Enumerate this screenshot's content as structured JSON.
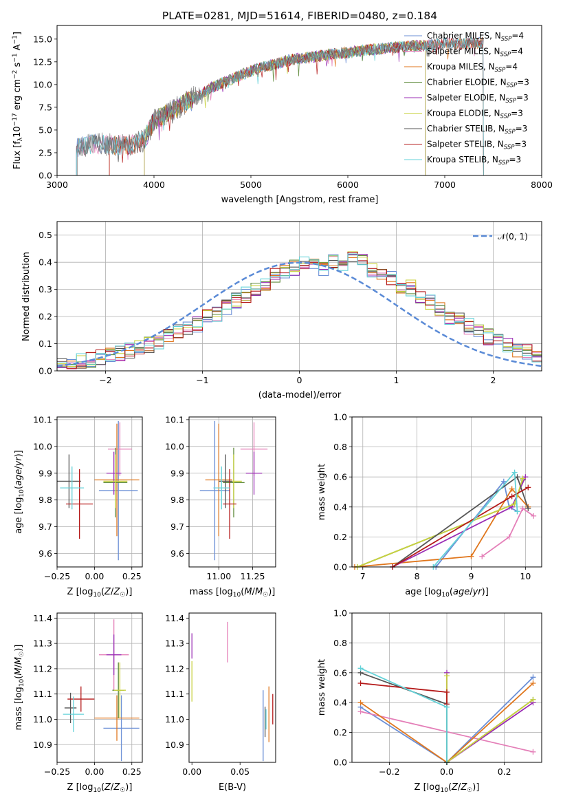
{
  "colors": {
    "Chabrier MILES": "#6b8fd6",
    "Salpeter MILES": "#e47fb8",
    "Kroupa MILES": "#e0761c",
    "Chabrier ELODIE": "#5e8a3a",
    "Salpeter ELODIE": "#9b2fb5",
    "Kroupa ELODIE": "#c8d23e",
    "Chabrier STELIB": "#555555",
    "Salpeter STELIB": "#b51a1a",
    "Kroupa STELIB": "#63d2d8",
    "normal": "#5a8ad6",
    "grid": "#b0b0b0"
  },
  "chart_data": [
    {
      "id": "spectrum",
      "type": "line",
      "title": "PLATE=0281, MJD=51614, FIBERID=0480, z=0.184",
      "xlabel": "wavelength [Angstrom, rest frame]",
      "ylabel": "Flux [f_λ 10^-17 erg cm^-2 s^-1 A^-1]",
      "xlim": [
        3000,
        8000
      ],
      "ylim": [
        0,
        16.5
      ],
      "xticks": [
        "3000",
        "4000",
        "5000",
        "6000",
        "7000",
        "8000"
      ],
      "yticks": [
        "0.0",
        "2.5",
        "5.0",
        "7.5",
        "10.0",
        "12.5",
        "15.0"
      ],
      "grid": false,
      "legend_position": "top-right",
      "legend": [
        {
          "label": "Chabrier MILES, N",
          "sub": "SSP",
          "suffix": "=4",
          "color": "#6b8fd6"
        },
        {
          "label": "Salpeter MILES, N",
          "sub": "SSP",
          "suffix": "=4",
          "color": "#e47fb8"
        },
        {
          "label": "Kroupa MILES, N",
          "sub": "SSP",
          "suffix": "=4",
          "color": "#e0761c"
        },
        {
          "label": "Chabrier ELODIE, N",
          "sub": "SSP",
          "suffix": "=3",
          "color": "#5e8a3a"
        },
        {
          "label": "Salpeter ELODIE, N",
          "sub": "SSP",
          "suffix": "=3",
          "color": "#9b2fb5"
        },
        {
          "label": "Kroupa ELODIE, N",
          "sub": "SSP",
          "suffix": "=3",
          "color": "#c8d23e"
        },
        {
          "label": "Chabrier STELIB, N",
          "sub": "SSP",
          "suffix": "=3",
          "color": "#555555"
        },
        {
          "label": "Salpeter STELIB, N",
          "sub": "SSP",
          "suffix": "=3",
          "color": "#b51a1a"
        },
        {
          "label": "Kroupa STELIB, N",
          "sub": "SSP",
          "suffix": "=3",
          "color": "#63d2d8"
        }
      ],
      "continuum": [
        [
          3200,
          3.1
        ],
        [
          3400,
          3.5
        ],
        [
          3600,
          3.3
        ],
        [
          3800,
          3.4
        ],
        [
          3900,
          3.9
        ],
        [
          4000,
          6.0
        ],
        [
          4200,
          7.2
        ],
        [
          4400,
          8.5
        ],
        [
          4600,
          9.7
        ],
        [
          4800,
          10.6
        ],
        [
          5000,
          11.5
        ],
        [
          5200,
          12.1
        ],
        [
          5400,
          12.7
        ],
        [
          5600,
          13.0
        ],
        [
          5800,
          13.3
        ],
        [
          6000,
          13.5
        ],
        [
          6200,
          13.8
        ],
        [
          6400,
          14.0
        ],
        [
          6600,
          14.2
        ],
        [
          6800,
          14.3
        ],
        [
          7000,
          14.5
        ],
        [
          7200,
          14.5
        ],
        [
          7400,
          14.6
        ]
      ],
      "model_ranges": [
        {
          "color": "#6b8fd6",
          "x": [
            3200,
            7400
          ]
        },
        {
          "color": "#e47fb8",
          "x": [
            3200,
            7400
          ]
        },
        {
          "color": "#e0761c",
          "x": [
            3540,
            7400
          ]
        },
        {
          "color": "#5e8a3a",
          "x": [
            3900,
            6800
          ]
        },
        {
          "color": "#9b2fb5",
          "x": [
            3900,
            6800
          ]
        },
        {
          "color": "#c8d23e",
          "x": [
            3900,
            6800
          ]
        },
        {
          "color": "#555555",
          "x": [
            3200,
            7400
          ]
        },
        {
          "color": "#b51a1a",
          "x": [
            3540,
            7400
          ]
        },
        {
          "color": "#63d2d8",
          "x": [
            3200,
            7400
          ]
        }
      ]
    },
    {
      "id": "residuals",
      "type": "line",
      "xlabel": "(data-model)/error",
      "ylabel": "Normed distribution",
      "xlim": [
        -2.5,
        2.5
      ],
      "ylim": [
        0,
        0.55
      ],
      "xticks": [
        "−2",
        "−1",
        "0",
        "1",
        "2"
      ],
      "yticks": [
        "0.0",
        "0.1",
        "0.2",
        "0.3",
        "0.4",
        "0.5"
      ],
      "grid": true,
      "legend_position": "top-right",
      "legend": [
        {
          "label": "𝒩(0, 1)",
          "color": "#5a8ad6"
        }
      ],
      "bin_width": 0.1,
      "bin_start": -2.5,
      "base_histogram": [
        0.04,
        0.03,
        0.035,
        0.04,
        0.05,
        0.055,
        0.065,
        0.075,
        0.09,
        0.095,
        0.11,
        0.125,
        0.14,
        0.16,
        0.17,
        0.2,
        0.21,
        0.235,
        0.26,
        0.28,
        0.3,
        0.32,
        0.35,
        0.37,
        0.38,
        0.4,
        0.4,
        0.38,
        0.4,
        0.38,
        0.41,
        0.4,
        0.375,
        0.355,
        0.345,
        0.315,
        0.305,
        0.275,
        0.255,
        0.23,
        0.2,
        0.185,
        0.165,
        0.15,
        0.125,
        0.11,
        0.095,
        0.08,
        0.07,
        0.06
      ]
    },
    {
      "id": "age-vs-Z",
      "type": "scatter",
      "xlabel": "Z [log10(Z/Z☉)]",
      "ylabel": "age  [log10(age/yr)]",
      "xlim": [
        -0.25,
        0.32
      ],
      "ylim": [
        9.55,
        10.11
      ],
      "xticks": [
        "−0.25",
        "0.00",
        "0.25"
      ],
      "yticks": [
        "9.6",
        "9.7",
        "9.8",
        "9.9",
        "10.0",
        "10.1"
      ],
      "grid": true,
      "points": [
        {
          "color": "#6b8fd6",
          "x": 0.16,
          "xerr": 0.13,
          "y": 9.835,
          "yerr": 0.26
        },
        {
          "color": "#e47fb8",
          "x": 0.17,
          "xerr": 0.08,
          "y": 9.99,
          "yerr": 0.1
        },
        {
          "color": "#e0761c",
          "x": 0.15,
          "xerr": 0.15,
          "y": 9.875,
          "yerr": 0.21
        },
        {
          "color": "#5e8a3a",
          "x": 0.14,
          "xerr": 0.08,
          "y": 9.865,
          "yerr": 0.13
        },
        {
          "color": "#9b2fb5",
          "x": 0.13,
          "xerr": 0.05,
          "y": 9.9,
          "yerr": 0.08
        },
        {
          "color": "#c8d23e",
          "x": 0.14,
          "xerr": 0.08,
          "y": 9.87,
          "yerr": 0.1
        },
        {
          "color": "#555555",
          "x": -0.17,
          "xerr": 0.08,
          "y": 9.87,
          "yerr": 0.1
        },
        {
          "color": "#b51a1a",
          "x": -0.1,
          "xerr": 0.09,
          "y": 9.785,
          "yerr": 0.13
        },
        {
          "color": "#63d2d8",
          "x": -0.15,
          "xerr": 0.08,
          "y": 9.845,
          "yerr": 0.08
        }
      ]
    },
    {
      "id": "age-vs-mass",
      "type": "scatter",
      "xlabel": "mass [log10(M/M☉)]",
      "ylabel": "",
      "xlim": [
        10.78,
        11.42
      ],
      "ylim": [
        9.55,
        10.11
      ],
      "xticks": [
        "11.00",
        "11.25"
      ],
      "yticks": [
        "9.6",
        "9.7",
        "9.8",
        "9.9",
        "10.0",
        "10.1"
      ],
      "grid": true,
      "points": [
        {
          "color": "#6b8fd6",
          "x": 10.97,
          "xerr": 0.11,
          "y": 9.835,
          "yerr": 0.26
        },
        {
          "color": "#e47fb8",
          "x": 11.26,
          "xerr": 0.1,
          "y": 9.99,
          "yerr": 0.1
        },
        {
          "color": "#e0761c",
          "x": 11.0,
          "xerr": 0.1,
          "y": 9.875,
          "yerr": 0.21
        },
        {
          "color": "#5e8a3a",
          "x": 11.11,
          "xerr": 0.08,
          "y": 9.865,
          "yerr": 0.13
        },
        {
          "color": "#9b2fb5",
          "x": 11.26,
          "xerr": 0.06,
          "y": 9.9,
          "yerr": 0.08
        },
        {
          "color": "#c8d23e",
          "x": 11.11,
          "xerr": 0.06,
          "y": 9.87,
          "yerr": 0.1
        },
        {
          "color": "#555555",
          "x": 11.05,
          "xerr": 0.05,
          "y": 9.87,
          "yerr": 0.1
        },
        {
          "color": "#b51a1a",
          "x": 11.08,
          "xerr": 0.05,
          "y": 9.785,
          "yerr": 0.13
        },
        {
          "color": "#63d2d8",
          "x": 11.02,
          "xerr": 0.06,
          "y": 9.845,
          "yerr": 0.08
        }
      ]
    },
    {
      "id": "mass-weight-vs-age",
      "type": "line",
      "xlabel": "age  [log10(age/yr)]",
      "ylabel": "mass weight",
      "xlim": [
        6.8,
        10.3
      ],
      "ylim": [
        0,
        1.0
      ],
      "xticks": [
        "7",
        "8",
        "9",
        "10"
      ],
      "yticks": [
        "0.0",
        "0.2",
        "0.4",
        "0.6",
        "0.8",
        "1.0"
      ],
      "grid": true,
      "series": [
        {
          "color": "#6b8fd6",
          "x": [
            8.35,
            9.6,
            9.7,
            9.85
          ],
          "y": [
            0.0,
            0.57,
            0.4,
            0.37
          ]
        },
        {
          "color": "#e47fb8",
          "x": [
            9.2,
            9.7,
            9.95,
            10.15
          ],
          "y": [
            0.07,
            0.2,
            0.39,
            0.34
          ]
        },
        {
          "color": "#e0761c",
          "x": [
            6.85,
            9.0,
            9.75,
            10.05
          ],
          "y": [
            0.0,
            0.07,
            0.52,
            0.4
          ]
        },
        {
          "color": "#5e8a3a",
          "x": [
            6.9,
            9.8,
            9.95
          ],
          "y": [
            0.0,
            0.42,
            0.58
          ]
        },
        {
          "color": "#9b2fb5",
          "x": [
            7.55,
            9.75,
            10.0
          ],
          "y": [
            0.0,
            0.4,
            0.6
          ]
        },
        {
          "color": "#c8d23e",
          "x": [
            6.9,
            9.8,
            9.95
          ],
          "y": [
            0.0,
            0.42,
            0.59
          ]
        },
        {
          "color": "#555555",
          "x": [
            7.55,
            9.85,
            10.05
          ],
          "y": [
            0.0,
            0.6,
            0.39
          ]
        },
        {
          "color": "#b51a1a",
          "x": [
            7.55,
            9.75,
            10.05
          ],
          "y": [
            0.0,
            0.47,
            0.53
          ]
        },
        {
          "color": "#63d2d8",
          "x": [
            8.3,
            9.8,
            9.85
          ],
          "y": [
            0.0,
            0.63,
            0.37
          ]
        }
      ]
    },
    {
      "id": "mass-vs-Z",
      "type": "scatter",
      "xlabel": "Z [log10(Z/Z☉)]",
      "ylabel": "mass [log10(M/M☉)]",
      "xlim": [
        -0.25,
        0.32
      ],
      "ylim": [
        10.83,
        11.42
      ],
      "xticks": [
        "−0.25",
        "0.00",
        "0.25"
      ],
      "yticks": [
        "10.9",
        "11.0",
        "11.1",
        "11.2",
        "11.3",
        "11.4"
      ],
      "grid": true,
      "points": [
        {
          "color": "#6b8fd6",
          "x": 0.18,
          "xerr": 0.12,
          "y": 10.965,
          "yerr": 0.13
        },
        {
          "color": "#e47fb8",
          "x": 0.13,
          "xerr": 0.1,
          "y": 11.255,
          "yerr": 0.14
        },
        {
          "color": "#e0761c",
          "x": 0.15,
          "xerr": 0.15,
          "y": 11.005,
          "yerr": 0.09
        },
        {
          "color": "#5e8a3a",
          "x": 0.16,
          "xerr": 0.04,
          "y": 11.115,
          "yerr": 0.11
        },
        {
          "color": "#9b2fb5",
          "x": 0.13,
          "xerr": 0.05,
          "y": 11.255,
          "yerr": 0.08
        },
        {
          "color": "#c8d23e",
          "x": 0.17,
          "xerr": 0.04,
          "y": 11.115,
          "yerr": 0.11
        },
        {
          "color": "#555555",
          "x": -0.16,
          "xerr": 0.04,
          "y": 11.045,
          "yerr": 0.06
        },
        {
          "color": "#b51a1a",
          "x": -0.09,
          "xerr": 0.09,
          "y": 11.08,
          "yerr": 0.05
        },
        {
          "color": "#63d2d8",
          "x": -0.14,
          "xerr": 0.07,
          "y": 11.02,
          "yerr": 0.07
        }
      ]
    },
    {
      "id": "mass-vs-ebv",
      "type": "scatter",
      "xlabel": "E(B-V)",
      "ylabel": "",
      "xlim": [
        -0.003,
        0.087
      ],
      "ylim": [
        10.83,
        11.42
      ],
      "xticks": [
        "0.00",
        "0.05"
      ],
      "yticks": [
        "10.9",
        "11.0",
        "11.1",
        "11.2",
        "11.3",
        "11.4"
      ],
      "grid": false,
      "points": [
        {
          "color": "#6b8fd6",
          "x": 0.074,
          "y": 10.975,
          "yerr": 0.14
        },
        {
          "color": "#e47fb8",
          "x": 0.037,
          "y": 11.305,
          "yerr": 0.08
        },
        {
          "color": "#e0761c",
          "x": 0.08,
          "y": 11.02,
          "yerr": 0.11
        },
        {
          "color": "#9b2fb5",
          "x": 0.0,
          "y": 11.29,
          "yerr": 0.05
        },
        {
          "color": "#c8d23e",
          "x": 0.0,
          "y": 11.15,
          "yerr": 0.08
        },
        {
          "color": "#555555",
          "x": 0.076,
          "y": 10.99,
          "yerr": 0.06
        },
        {
          "color": "#b51a1a",
          "x": 0.084,
          "y": 11.04,
          "yerr": 0.06
        },
        {
          "color": "#63d2d8",
          "x": 0.077,
          "y": 11.0,
          "yerr": 0.04
        }
      ]
    },
    {
      "id": "mass-weight-vs-Z",
      "type": "line",
      "xlabel": "Z [log10(Z/Z☉)]",
      "ylabel": "mass weight",
      "xlim": [
        -0.33,
        0.33
      ],
      "ylim": [
        0,
        1.0
      ],
      "xticks": [
        "−0.2",
        "0.0",
        "0.2"
      ],
      "yticks": [
        "0.0",
        "0.2",
        "0.4",
        "0.6",
        "0.8",
        "1.0"
      ],
      "grid": true,
      "series": [
        {
          "color": "#6b8fd6",
          "x": [
            -0.3,
            0.0,
            0.3
          ],
          "y": [
            0.37,
            0.0,
            0.57
          ]
        },
        {
          "color": "#e47fb8",
          "x": [
            -0.3,
            0.3
          ],
          "y": [
            0.34,
            0.07
          ]
        },
        {
          "color": "#e0761c",
          "x": [
            -0.3,
            0.0,
            0.3
          ],
          "y": [
            0.4,
            0.0,
            0.53
          ]
        },
        {
          "color": "#5e8a3a",
          "x": [
            0.0,
            0.3
          ],
          "y": [
            0.0,
            0.42
          ]
        },
        {
          "color": "#9b2fb5",
          "x": [
            0.0,
            0.0,
            0.3
          ],
          "y": [
            0.6,
            0.0,
            0.4
          ]
        },
        {
          "color": "#c8d23e",
          "x": [
            0.0,
            0.0,
            0.3
          ],
          "y": [
            0.58,
            0.0,
            0.42
          ]
        },
        {
          "color": "#555555",
          "x": [
            -0.3,
            0.0,
            0.0
          ],
          "y": [
            0.6,
            0.39,
            0.0
          ]
        },
        {
          "color": "#b51a1a",
          "x": [
            -0.3,
            0.0,
            0.0
          ],
          "y": [
            0.53,
            0.47,
            0.39
          ]
        },
        {
          "color": "#63d2d8",
          "x": [
            -0.3,
            0.0,
            0.0
          ],
          "y": [
            0.63,
            0.37,
            0.0
          ]
        }
      ]
    }
  ]
}
